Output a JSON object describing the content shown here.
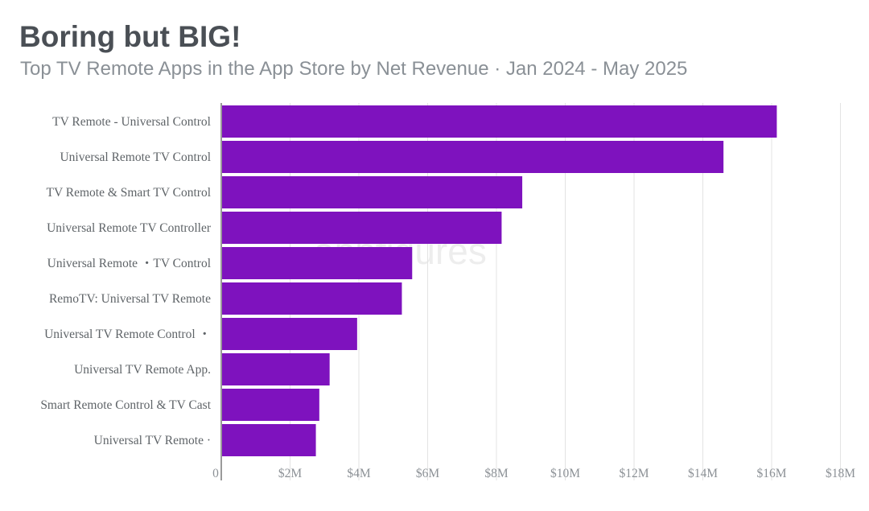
{
  "page": {
    "title": "Boring but BIG!",
    "subtitle": "Top TV Remote Apps in the App Store by Net Revenue · Jan 2024 - May 2025",
    "watermark": "appfigures"
  },
  "colors": {
    "bar": "#7e12be",
    "grid": "#e3e3e3",
    "axis": "#9a9a9a",
    "title": "#4a4f55",
    "subtitle": "#8a9096"
  },
  "chart_data": {
    "type": "bar",
    "orientation": "horizontal",
    "title": "Boring but BIG!",
    "subtitle": "Top TV Remote Apps in the App Store by Net Revenue · Jan 2024 - May 2025",
    "xlabel": "",
    "ylabel": "",
    "categories": [
      "TV Remote - Universal Control",
      "Universal Remote TV Control",
      "TV Remote & Smart TV Control",
      "Universal Remote TV Controller",
      "Universal Remote ・TV Control",
      "RemoTV: Universal TV Remote",
      "Universal TV Remote Control ・",
      "Universal TV Remote App.",
      "Smart Remote Control & TV Cast",
      "Universal TV Remote ·"
    ],
    "values": [
      16.15,
      14.6,
      8.75,
      8.15,
      5.55,
      5.25,
      3.95,
      3.15,
      2.85,
      2.75
    ],
    "unit": "millions USD",
    "xlim": [
      0,
      18
    ],
    "x_ticks": [
      0,
      2,
      4,
      6,
      8,
      10,
      12,
      14,
      16,
      18
    ],
    "x_tick_labels": [
      "0",
      "$2M",
      "$4M",
      "$6M",
      "$8M",
      "$10M",
      "$12M",
      "$14M",
      "$16M",
      "$18M"
    ],
    "grid": true,
    "legend": "none"
  }
}
